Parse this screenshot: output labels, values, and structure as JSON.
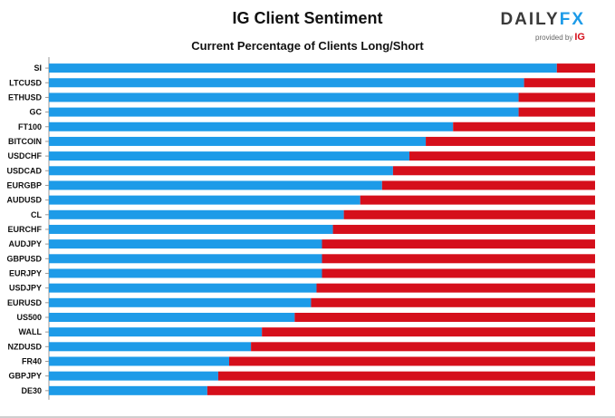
{
  "header": {
    "title": "IG Client Sentiment",
    "subtitle": "Current Percentage of Clients Long/Short"
  },
  "logo": {
    "brand_left": "DAILY",
    "brand_right": "FX",
    "provided_by": "provided by",
    "ig": "IG"
  },
  "colors": {
    "long": "#1d9be8",
    "short": "#d50f1b"
  },
  "chart_data": {
    "type": "bar",
    "orientation": "horizontal",
    "stacked": true,
    "xlim": [
      0,
      100
    ],
    "grid": false,
    "legend": "none",
    "categories": [
      "SI",
      "LTCUSD",
      "ETHUSD",
      "GC",
      "FT100",
      "BITCOIN",
      "USDCHF",
      "USDCAD",
      "EURGBP",
      "AUDUSD",
      "CL",
      "EURCHF",
      "AUDJPY",
      "GBPUSD",
      "EURJPY",
      "USDJPY",
      "EURUSD",
      "US500",
      "WALL",
      "NZDUSD",
      "FR40",
      "GBPJPY",
      "DE30"
    ],
    "series": [
      {
        "values": [
          93,
          87,
          86,
          86,
          74,
          69,
          66,
          63,
          61,
          57,
          54,
          52,
          50,
          50,
          50,
          49,
          48,
          45,
          39,
          37,
          33,
          31,
          29
        ]
      },
      {
        "values": [
          7,
          13,
          14,
          14,
          26,
          31,
          34,
          37,
          39,
          43,
          46,
          48,
          50,
          50,
          50,
          51,
          52,
          55,
          61,
          63,
          67,
          69,
          71
        ]
      }
    ]
  }
}
